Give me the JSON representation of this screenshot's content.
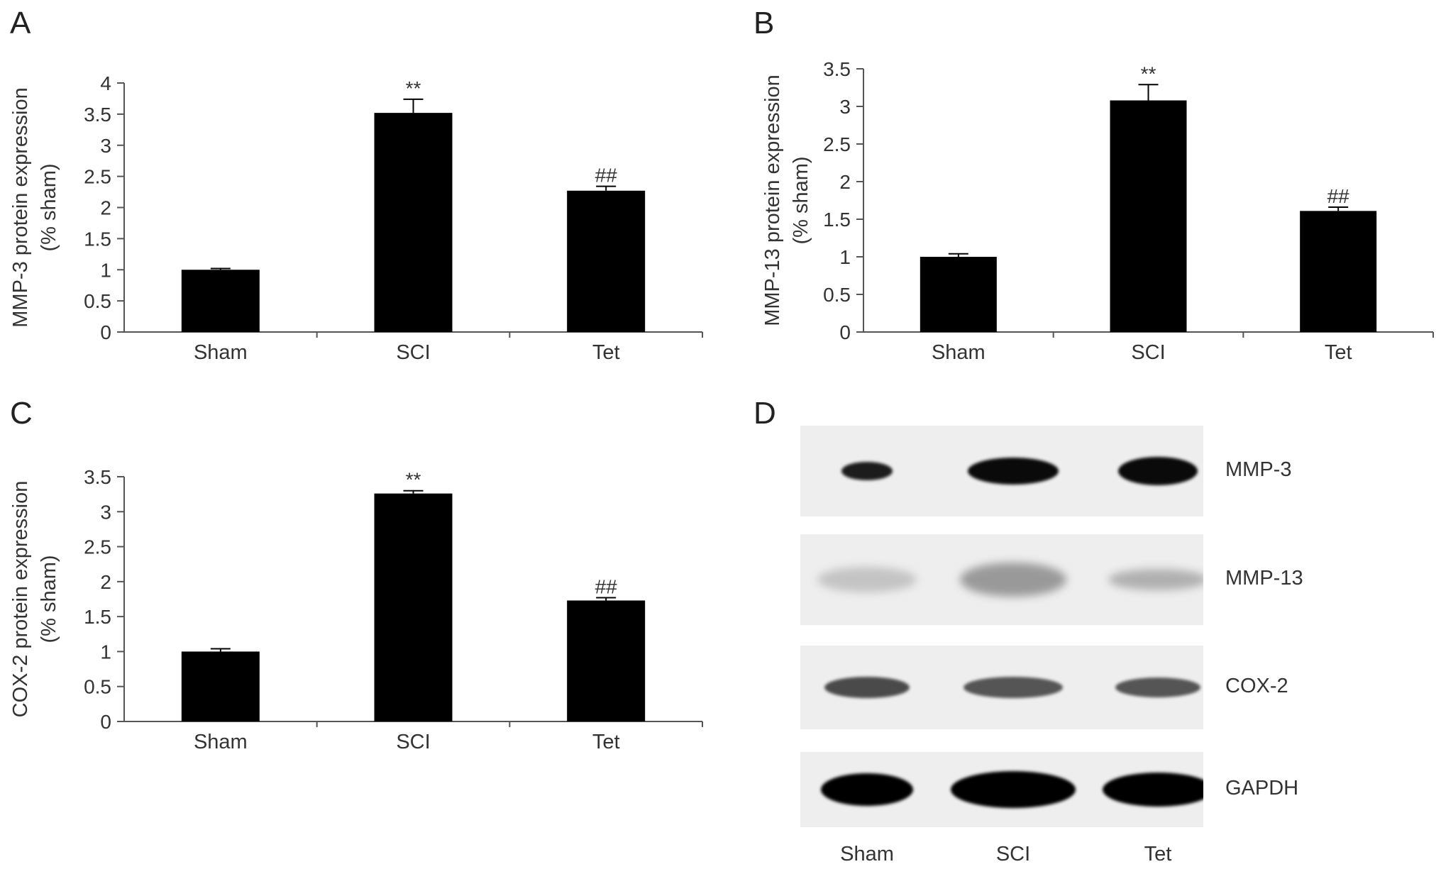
{
  "chart_data": [
    {
      "panel": "A",
      "type": "bar",
      "categories": [
        "Sham",
        "SCI",
        "Tet"
      ],
      "values": [
        1.0,
        3.52,
        2.27
      ],
      "errors": [
        0.02,
        0.22,
        0.07
      ],
      "annotations": [
        "",
        "**",
        "##"
      ],
      "ylabel": "MMP-3 protein expression",
      "ylabel_sub": "(% sham)",
      "ylim": [
        0,
        4
      ],
      "yticks": [
        "0",
        "0.5",
        "1",
        "1.5",
        "2",
        "2.5",
        "3",
        "3.5",
        "4"
      ],
      "bar_color": "#000000"
    },
    {
      "panel": "B",
      "type": "bar",
      "categories": [
        "Sham",
        "SCI",
        "Tet"
      ],
      "values": [
        1.0,
        3.08,
        1.61
      ],
      "errors": [
        0.04,
        0.21,
        0.05
      ],
      "annotations": [
        "",
        "**",
        "##"
      ],
      "ylabel": "MMP-13 protein expression",
      "ylabel_sub": "(% sham)",
      "ylim": [
        0,
        3.5
      ],
      "yticks": [
        "0",
        "0.5",
        "1",
        "1.5",
        "2",
        "2.5",
        "3",
        "3.5"
      ],
      "bar_color": "#000000"
    },
    {
      "panel": "C",
      "type": "bar",
      "categories": [
        "Sham",
        "SCI",
        "Tet"
      ],
      "values": [
        1.0,
        3.26,
        1.73
      ],
      "errors": [
        0.04,
        0.04,
        0.04
      ],
      "annotations": [
        "",
        "**",
        "##"
      ],
      "ylabel": "COX-2 protein expression",
      "ylabel_sub": "(% sham)",
      "ylim": [
        0,
        3.5
      ],
      "yticks": [
        "0",
        "0.5",
        "1",
        "1.5",
        "2",
        "2.5",
        "3",
        "3.5"
      ],
      "bar_color": "#000000"
    }
  ],
  "blot": {
    "panel": "D",
    "rows": [
      "MMP-3",
      "MMP-13",
      "COX-2",
      "GAPDH"
    ],
    "lanes": [
      "Sham",
      "SCI",
      "Tet"
    ]
  }
}
